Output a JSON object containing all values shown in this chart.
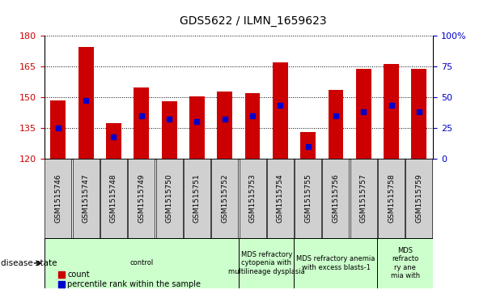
{
  "title": "GDS5622 / ILMN_1659623",
  "samples": [
    "GSM1515746",
    "GSM1515747",
    "GSM1515748",
    "GSM1515749",
    "GSM1515750",
    "GSM1515751",
    "GSM1515752",
    "GSM1515753",
    "GSM1515754",
    "GSM1515755",
    "GSM1515756",
    "GSM1515757",
    "GSM1515758",
    "GSM1515759"
  ],
  "counts": [
    148.5,
    174.5,
    137.5,
    154.5,
    148.0,
    150.5,
    152.5,
    152.0,
    167.0,
    133.0,
    153.5,
    163.5,
    166.0,
    163.5
  ],
  "percentile_ranks": [
    25,
    47,
    18,
    35,
    32,
    30,
    32,
    35,
    43,
    10,
    35,
    38,
    43,
    38
  ],
  "y_min": 120,
  "y_max": 180,
  "y_ticks": [
    120,
    135,
    150,
    165,
    180
  ],
  "y2_ticks": [
    0,
    25,
    50,
    75,
    100
  ],
  "bar_color": "#cc0000",
  "dot_color": "#0000cc",
  "bar_bottom": 120,
  "disease_groups": [
    {
      "label": "control",
      "start": 0,
      "end": 7
    },
    {
      "label": "MDS refractory\ncytopenia with\nmultilineage dysplasia",
      "start": 7,
      "end": 9
    },
    {
      "label": "MDS refractory anemia\nwith excess blasts-1",
      "start": 9,
      "end": 12
    },
    {
      "label": "MDS\nrefracto\nry ane\nmia with",
      "start": 12,
      "end": 14
    }
  ],
  "xlabel_disease": "disease state",
  "legend_count": "count",
  "legend_pct": "percentile rank within the sample",
  "group_color": "#ccffcc",
  "xtick_bg": "#d0d0d0"
}
